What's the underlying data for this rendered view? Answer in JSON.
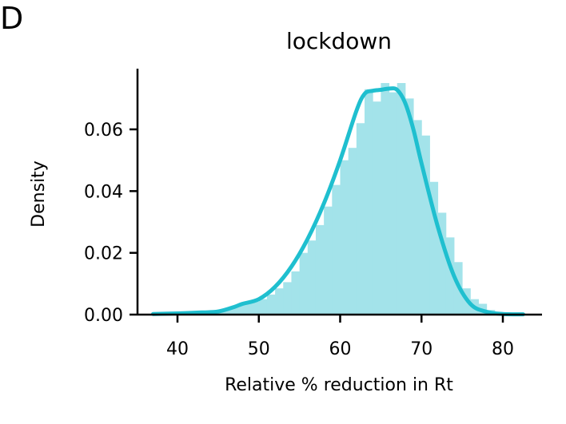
{
  "panel_label": "D",
  "chart_data": {
    "type": "histogram",
    "title": "lockdown",
    "xlabel": "Relative % reduction in Rt",
    "ylabel": "Density",
    "xlim": [
      35,
      85
    ],
    "ylim": [
      0,
      0.08
    ],
    "xticks": [
      40,
      50,
      60,
      70,
      80
    ],
    "yticks": [
      0.0,
      0.02,
      0.04,
      0.06
    ],
    "xtick_labels": [
      "40",
      "50",
      "60",
      "70",
      "80"
    ],
    "ytick_labels": [
      "0.00",
      "0.02",
      "0.04",
      "0.06"
    ],
    "colors": {
      "bars": "#a3e3ea",
      "line": "#1fbfcf",
      "axis": "#000000"
    },
    "histogram": {
      "bin_width": 1,
      "bins": [
        [
          37,
          0.0003
        ],
        [
          38,
          0.0003
        ],
        [
          39,
          0.0004
        ],
        [
          40,
          0.0005
        ],
        [
          41,
          0.0006
        ],
        [
          42,
          0.0006
        ],
        [
          43,
          0.0008
        ],
        [
          44,
          0.001
        ],
        [
          45,
          0.0012
        ],
        [
          46,
          0.002
        ],
        [
          47,
          0.003
        ],
        [
          48,
          0.0035
        ],
        [
          49,
          0.0042
        ],
        [
          50,
          0.005
        ],
        [
          51,
          0.0065
        ],
        [
          52,
          0.0085
        ],
        [
          53,
          0.0105
        ],
        [
          54,
          0.014
        ],
        [
          55,
          0.02
        ],
        [
          56,
          0.024
        ],
        [
          57,
          0.029
        ],
        [
          58,
          0.035
        ],
        [
          59,
          0.042
        ],
        [
          60,
          0.05
        ],
        [
          61,
          0.054
        ],
        [
          62,
          0.062
        ],
        [
          63,
          0.073
        ],
        [
          64,
          0.069
        ],
        [
          65,
          0.075
        ],
        [
          66,
          0.072
        ],
        [
          67,
          0.075
        ],
        [
          68,
          0.07
        ],
        [
          69,
          0.063
        ],
        [
          70,
          0.058
        ],
        [
          71,
          0.043
        ],
        [
          72,
          0.033
        ],
        [
          73,
          0.025
        ],
        [
          74,
          0.017
        ],
        [
          75,
          0.0085
        ],
        [
          76,
          0.005
        ],
        [
          77,
          0.0035
        ],
        [
          78,
          0.0015
        ],
        [
          79,
          0.0008
        ],
        [
          80,
          0.0005
        ],
        [
          81,
          0.0003
        ],
        [
          82,
          0.0002
        ]
      ]
    },
    "kde": {
      "x": [
        37,
        40,
        43,
        45,
        47,
        48,
        50,
        52,
        54,
        56,
        58,
        60,
        62,
        63,
        64,
        65,
        66,
        67,
        68,
        69,
        70,
        72,
        74,
        76,
        78,
        80,
        82.5
      ],
      "y": [
        0.0002,
        0.0004,
        0.0007,
        0.001,
        0.0025,
        0.0035,
        0.005,
        0.009,
        0.0155,
        0.0245,
        0.036,
        0.05,
        0.066,
        0.0715,
        0.0725,
        0.0728,
        0.0732,
        0.0728,
        0.0685,
        0.06,
        0.049,
        0.0285,
        0.0125,
        0.0035,
        0.0009,
        0.0002,
        0.0001
      ]
    }
  }
}
